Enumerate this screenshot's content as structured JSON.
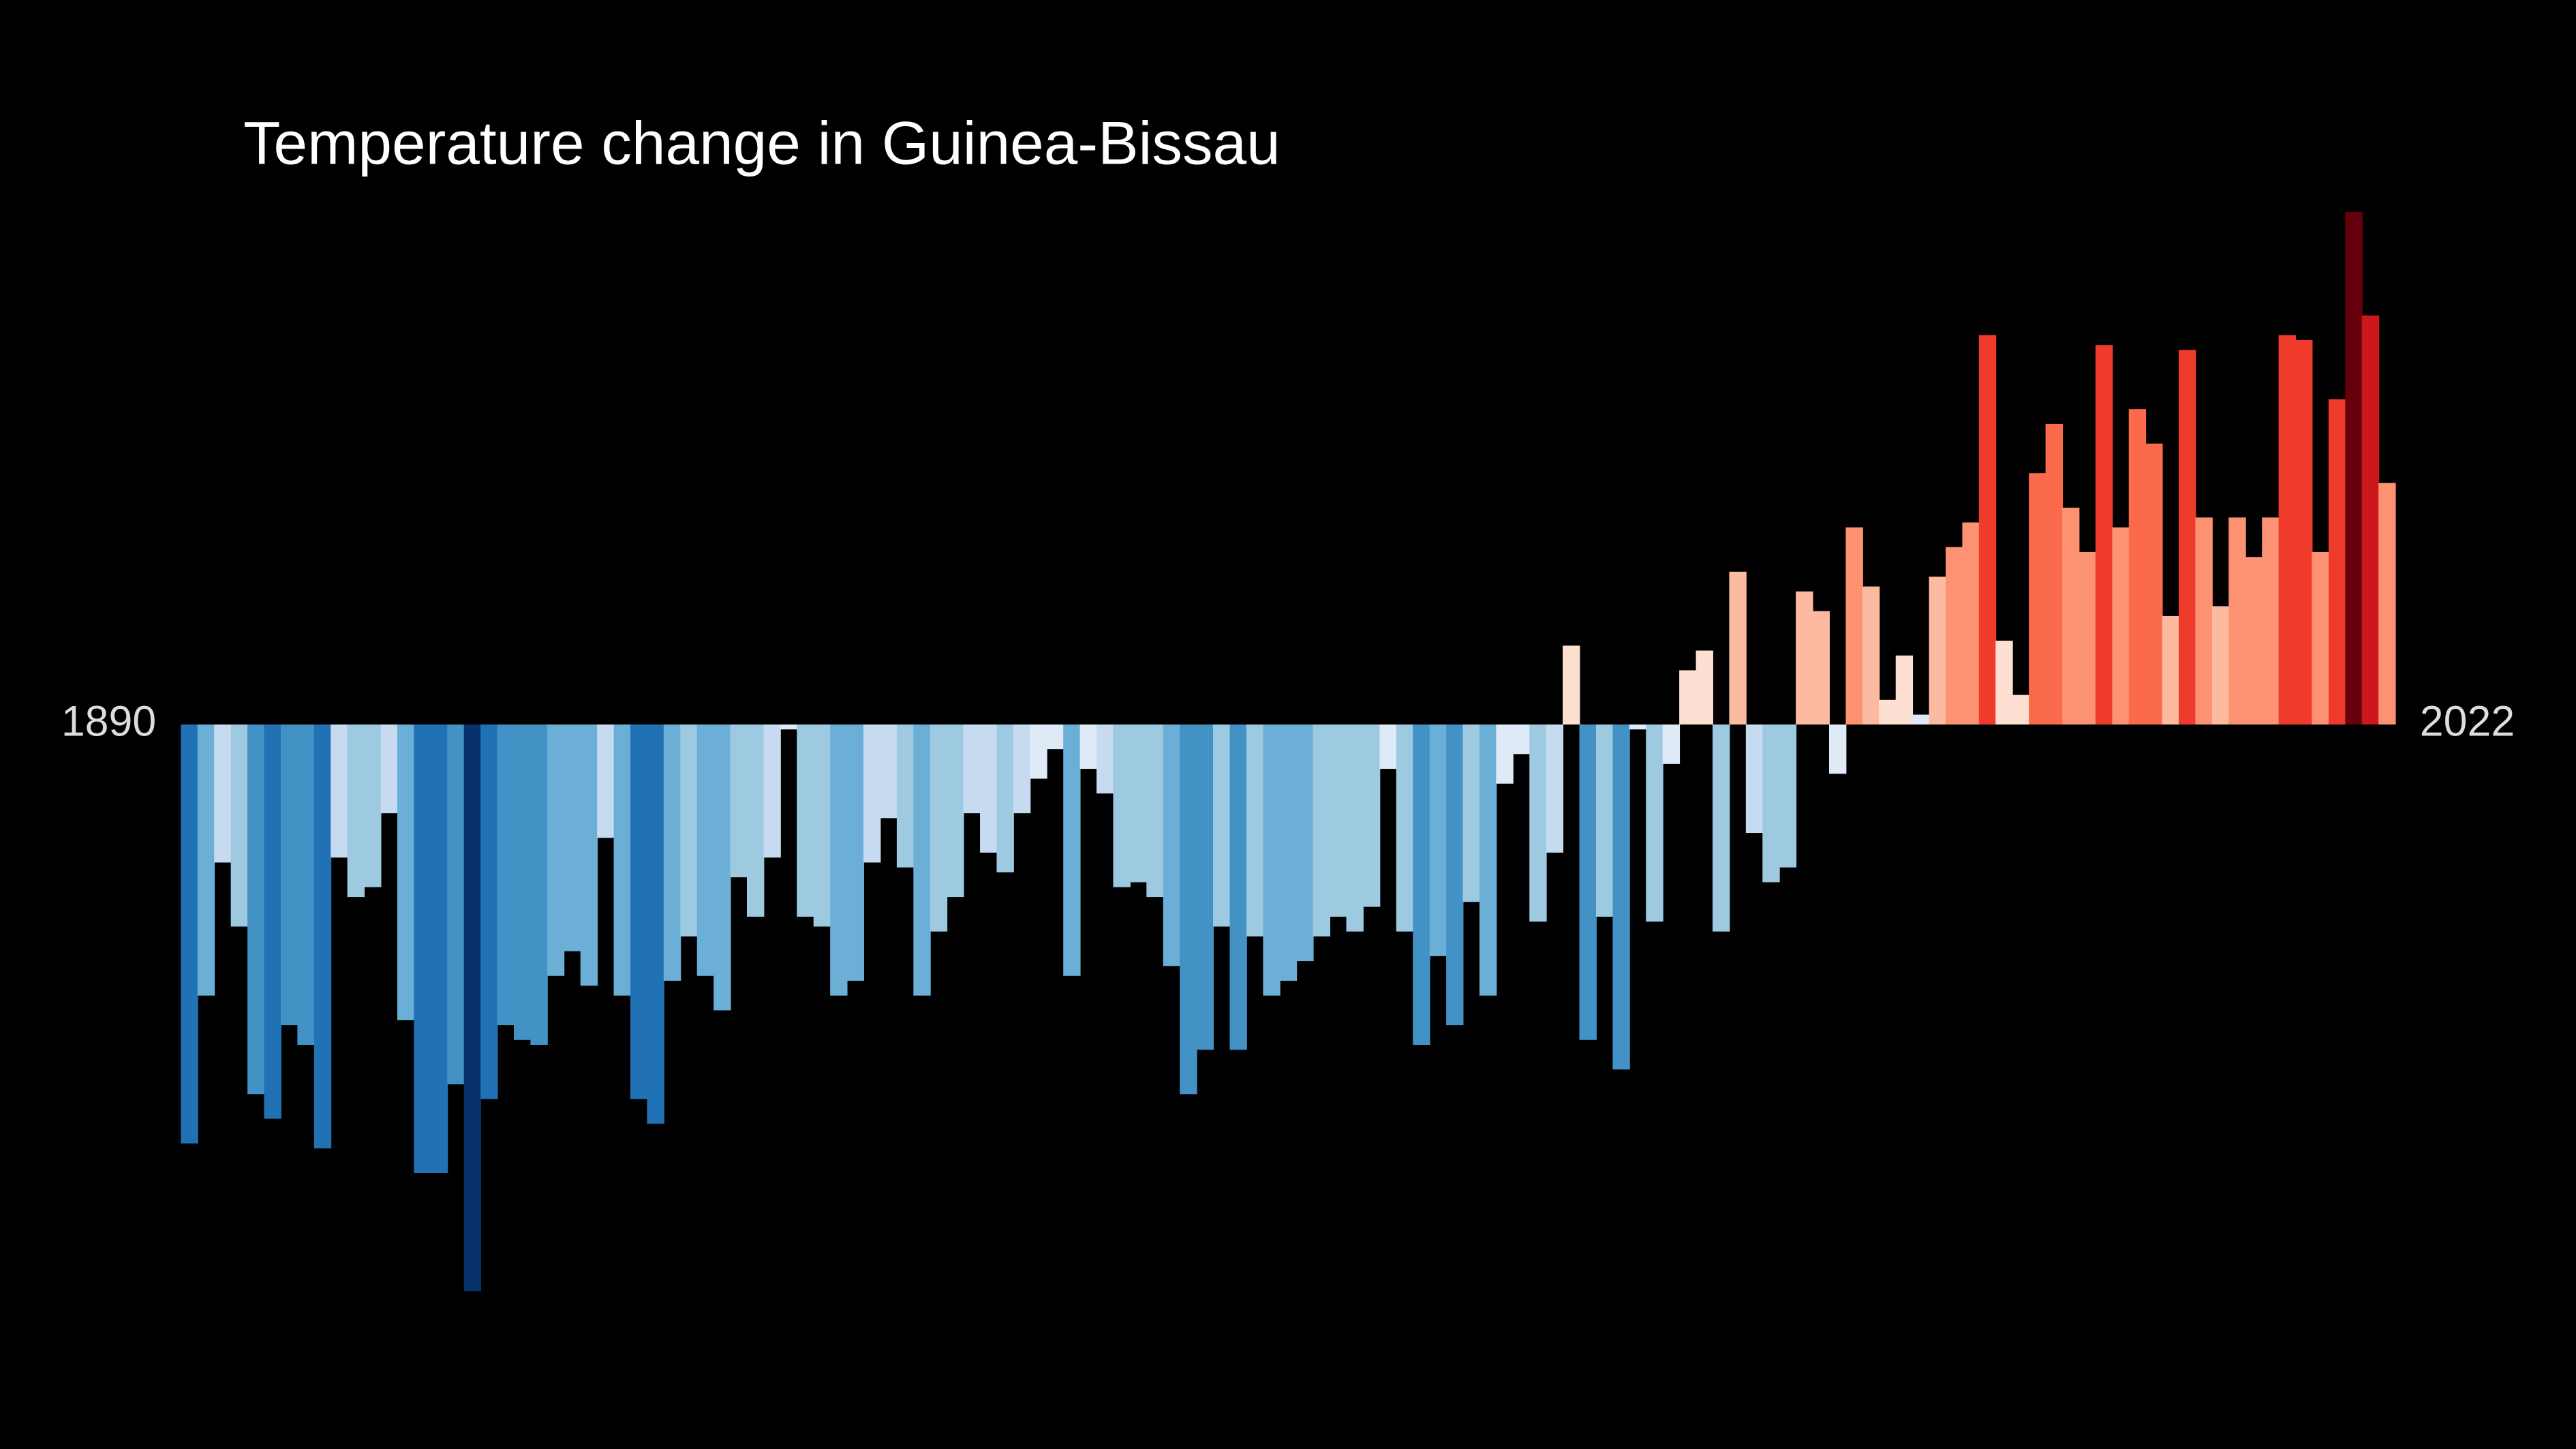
{
  "chart_data": {
    "type": "bar",
    "title": "Temperature change in Guinea-Bissau",
    "x": [
      1890,
      1891,
      1892,
      1893,
      1894,
      1895,
      1896,
      1897,
      1898,
      1899,
      1900,
      1901,
      1902,
      1903,
      1904,
      1905,
      1906,
      1907,
      1908,
      1909,
      1910,
      1911,
      1912,
      1913,
      1914,
      1915,
      1916,
      1917,
      1918,
      1919,
      1920,
      1921,
      1922,
      1923,
      1924,
      1925,
      1926,
      1927,
      1928,
      1929,
      1930,
      1931,
      1932,
      1933,
      1934,
      1935,
      1936,
      1937,
      1938,
      1939,
      1940,
      1941,
      1942,
      1943,
      1944,
      1945,
      1946,
      1947,
      1948,
      1949,
      1950,
      1951,
      1952,
      1953,
      1954,
      1955,
      1956,
      1957,
      1958,
      1959,
      1960,
      1961,
      1962,
      1963,
      1964,
      1965,
      1966,
      1967,
      1968,
      1969,
      1970,
      1971,
      1972,
      1973,
      1974,
      1975,
      1976,
      1977,
      1978,
      1979,
      1980,
      1981,
      1982,
      1983,
      1984,
      1985,
      1986,
      1987,
      1988,
      1989,
      1990,
      1991,
      1992,
      1993,
      1994,
      1995,
      1996,
      1997,
      1998,
      1999,
      2000,
      2001,
      2002,
      2003,
      2004,
      2005,
      2006,
      2007,
      2008,
      2009,
      2010,
      2011,
      2012,
      2013,
      2014,
      2015,
      2016,
      2017,
      2018,
      2019,
      2020,
      2021,
      2022
    ],
    "values": [
      -0.85,
      -0.55,
      -0.28,
      -0.41,
      -0.75,
      -0.8,
      -0.61,
      -0.65,
      -0.86,
      -0.27,
      -0.35,
      -0.33,
      -0.18,
      -0.6,
      -0.91,
      -0.91,
      -0.73,
      -1.15,
      -0.76,
      -0.61,
      -0.64,
      -0.65,
      -0.51,
      -0.46,
      -0.53,
      -0.23,
      -0.55,
      -0.76,
      -0.81,
      -0.52,
      -0.43,
      -0.51,
      -0.58,
      -0.31,
      -0.39,
      -0.27,
      -0.01,
      -0.39,
      -0.41,
      -0.55,
      -0.52,
      -0.28,
      -0.19,
      -0.29,
      -0.55,
      -0.42,
      -0.35,
      -0.18,
      -0.26,
      -0.3,
      -0.18,
      -0.11,
      -0.05,
      -0.51,
      -0.09,
      -0.14,
      -0.33,
      -0.32,
      -0.35,
      -0.49,
      -0.75,
      -0.66,
      -0.41,
      -0.66,
      -0.43,
      -0.55,
      -0.52,
      -0.48,
      -0.43,
      -0.39,
      -0.42,
      -0.37,
      -0.09,
      -0.42,
      -0.65,
      -0.47,
      -0.61,
      -0.36,
      -0.55,
      -0.12,
      -0.06,
      -0.4,
      -0.26,
      0.16,
      -0.64,
      -0.39,
      -0.7,
      -0.01,
      -0.4,
      -0.08,
      0.11,
      0.15,
      -0.42,
      0.31,
      -0.22,
      -0.32,
      -0.29,
      0.27,
      0.23,
      -0.1,
      0.4,
      0.28,
      0.05,
      0.14,
      0.02,
      0.3,
      0.36,
      0.41,
      0.79,
      0.17,
      0.06,
      0.51,
      0.61,
      0.44,
      0.35,
      0.77,
      0.4,
      0.64,
      0.57,
      0.22,
      0.76,
      0.42,
      0.24,
      0.42,
      0.34,
      0.42,
      0.79,
      0.78,
      0.35,
      0.66,
      1.04,
      0.83,
      0.49
    ],
    "palette": [
      "#08306b",
      "#08519c",
      "#2171b5",
      "#4292c6",
      "#6baed6",
      "#9ecae1",
      "#c6dbef",
      "#deebf7",
      "#fee0d2",
      "#fcbba1",
      "#fc9272",
      "#fb6a4a",
      "#ef3b2c",
      "#cb181d",
      "#67000d"
    ],
    "xlim": [
      1890,
      2022
    ],
    "xticks": [
      1890,
      2022
    ],
    "ylim": [
      -1.47,
      1.47
    ]
  }
}
